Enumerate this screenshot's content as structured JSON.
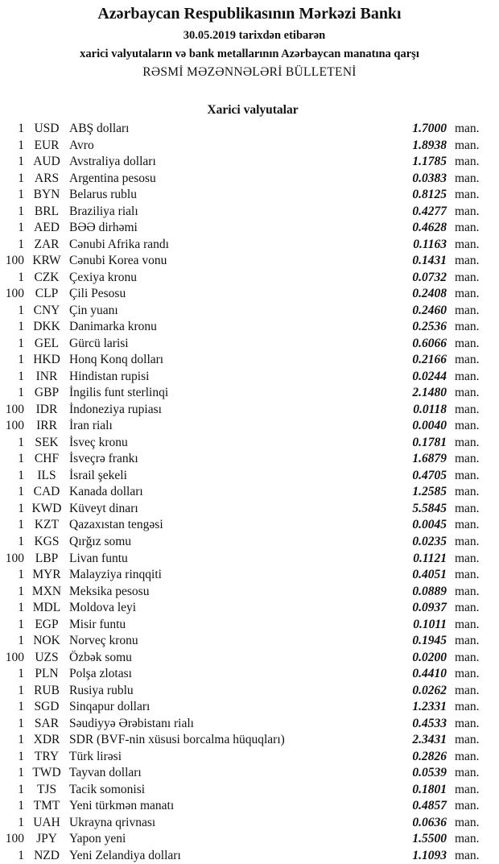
{
  "header": {
    "bank": "Azərbaycan Respublikasının Mərkəzi Bankı",
    "date_line": "30.05.2019  tarixdən etibarən",
    "subtitle": "xarici valyutaların və bank metallarının Azərbaycan manatına qarşı",
    "bulletin": "RƏSMİ MƏZƏNNƏLƏRİ BÜLLETENİ",
    "section": "Xarici valyutalar"
  },
  "unit_label": "man.",
  "rows": [
    {
      "units": "1",
      "code": "USD",
      "name": "ABŞ dolları",
      "rate": "1.7000"
    },
    {
      "units": "1",
      "code": "EUR",
      "name": "Avro",
      "rate": "1.8938"
    },
    {
      "units": "1",
      "code": "AUD",
      "name": "Avstraliya dolları",
      "rate": "1.1785"
    },
    {
      "units": "1",
      "code": "ARS",
      "name": "Argentina pesosu",
      "rate": "0.0383"
    },
    {
      "units": "1",
      "code": "BYN",
      "name": "Belarus rublu",
      "rate": "0.8125"
    },
    {
      "units": "1",
      "code": "BRL",
      "name": "Braziliya rialı",
      "rate": "0.4277"
    },
    {
      "units": "1",
      "code": "AED",
      "name": "BƏƏ dirhəmi",
      "rate": "0.4628"
    },
    {
      "units": "1",
      "code": "ZAR",
      "name": "Cənubi Afrika randı",
      "rate": "0.1163"
    },
    {
      "units": "100",
      "code": "KRW",
      "name": "Cənubi Korea vonu",
      "rate": "0.1431"
    },
    {
      "units": "1",
      "code": "CZK",
      "name": "Çexiya kronu",
      "rate": "0.0732"
    },
    {
      "units": "100",
      "code": "CLP",
      "name": "Çili Pesosu",
      "rate": "0.2408"
    },
    {
      "units": "1",
      "code": "CNY",
      "name": "Çin yuanı",
      "rate": "0.2460"
    },
    {
      "units": "1",
      "code": "DKK",
      "name": "Danimarka kronu",
      "rate": "0.2536"
    },
    {
      "units": "1",
      "code": "GEL",
      "name": "Gürcü larisi",
      "rate": "0.6066"
    },
    {
      "units": "1",
      "code": "HKD",
      "name": "Honq Konq dolları",
      "rate": "0.2166"
    },
    {
      "units": "1",
      "code": "INR",
      "name": "Hindistan rupisi",
      "rate": "0.0244"
    },
    {
      "units": "1",
      "code": "GBP",
      "name": "İngilis funt sterlinqi",
      "rate": "2.1480"
    },
    {
      "units": "100",
      "code": "IDR",
      "name": "İndoneziya rupiası",
      "rate": "0.0118"
    },
    {
      "units": "100",
      "code": "IRR",
      "name": "İran rialı",
      "rate": "0.0040"
    },
    {
      "units": "1",
      "code": "SEK",
      "name": "İsveç kronu",
      "rate": "0.1781"
    },
    {
      "units": "1",
      "code": "CHF",
      "name": "İsveçrə frankı",
      "rate": "1.6879"
    },
    {
      "units": "1",
      "code": "ILS",
      "name": "İsrail şekeli",
      "rate": "0.4705"
    },
    {
      "units": "1",
      "code": "CAD",
      "name": "Kanada dolları",
      "rate": "1.2585"
    },
    {
      "units": "1",
      "code": "KWD",
      "name": "Küveyt dinarı",
      "rate": "5.5845"
    },
    {
      "units": "1",
      "code": "KZT",
      "name": "Qazaxıstan tengəsi",
      "rate": "0.0045"
    },
    {
      "units": "1",
      "code": "KGS",
      "name": "Qırğız somu",
      "rate": "0.0235"
    },
    {
      "units": "100",
      "code": "LBP",
      "name": "Livan funtu",
      "rate": "0.1121"
    },
    {
      "units": "1",
      "code": "MYR",
      "name": "Malayziya rinqqiti",
      "rate": "0.4051"
    },
    {
      "units": "1",
      "code": "MXN",
      "name": "Meksika pesosu",
      "rate": "0.0889"
    },
    {
      "units": "1",
      "code": "MDL",
      "name": "Moldova leyi",
      "rate": "0.0937"
    },
    {
      "units": "1",
      "code": "EGP",
      "name": "Misir funtu",
      "rate": "0.1011"
    },
    {
      "units": "1",
      "code": "NOK",
      "name": "Norveç kronu",
      "rate": "0.1945"
    },
    {
      "units": "100",
      "code": "UZS",
      "name": "Özbək somu",
      "rate": "0.0200"
    },
    {
      "units": "1",
      "code": "PLN",
      "name": "Polşa zlotası",
      "rate": "0.4410"
    },
    {
      "units": "1",
      "code": "RUB",
      "name": "Rusiya rublu",
      "rate": "0.0262"
    },
    {
      "units": "1",
      "code": "SGD",
      "name": "Sinqapur dolları",
      "rate": "1.2331"
    },
    {
      "units": "1",
      "code": "SAR",
      "name": "Səudiyyə Ərəbistanı rialı",
      "rate": "0.4533"
    },
    {
      "units": "1",
      "code": "XDR",
      "name": "SDR (BVF-nin xüsusi borcalma hüquqları)",
      "rate": "2.3431"
    },
    {
      "units": "1",
      "code": "TRY",
      "name": "Türk lirəsi",
      "rate": "0.2826"
    },
    {
      "units": "1",
      "code": "TWD",
      "name": "Tayvan dolları",
      "rate": "0.0539"
    },
    {
      "units": "1",
      "code": "TJS",
      "name": "Tacik somonisi",
      "rate": "0.1801"
    },
    {
      "units": "1",
      "code": "TMT",
      "name": "Yeni türkmən manatı",
      "rate": "0.4857"
    },
    {
      "units": "1",
      "code": "UAH",
      "name": "Ukrayna qrivnası",
      "rate": "0.0636"
    },
    {
      "units": "100",
      "code": "JPY",
      "name": "Yapon yeni",
      "rate": "1.5500"
    },
    {
      "units": "1",
      "code": "NZD",
      "name": "Yeni Zelandiya dolları",
      "rate": "1.1093"
    }
  ]
}
